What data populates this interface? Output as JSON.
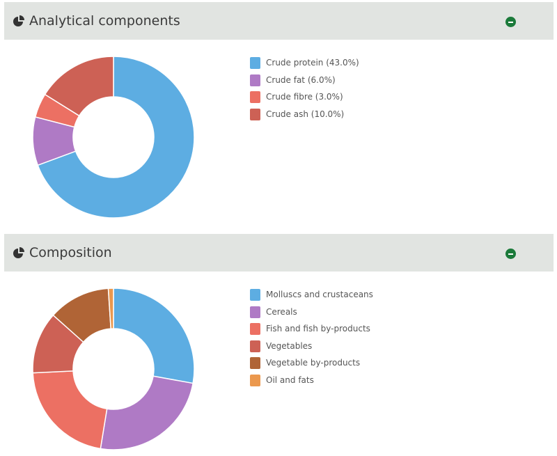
{
  "panels": [
    {
      "title": "Analytical components",
      "icon": "pie-chart-icon",
      "collapse_icon": "minus-circle-icon",
      "legend": [
        {
          "label": "Crude protein (43.0%)",
          "color": "#5dade2"
        },
        {
          "label": "Crude fat (6.0%)",
          "color": "#af7ac5"
        },
        {
          "label": "Crude fibre (3.0%)",
          "color": "#ec7063"
        },
        {
          "label": "Crude ash (10.0%)",
          "color": "#cd6155"
        }
      ]
    },
    {
      "title": "Composition",
      "icon": "pie-chart-icon",
      "collapse_icon": "minus-circle-icon",
      "legend": [
        {
          "label": "Molluscs and crustaceans",
          "color": "#5dade2"
        },
        {
          "label": "Cereals",
          "color": "#af7ac5"
        },
        {
          "label": "Fish and fish by-products",
          "color": "#ec7063"
        },
        {
          "label": "Vegetables",
          "color": "#cd6155"
        },
        {
          "label": "Vegetable by-products",
          "color": "#b06436"
        },
        {
          "label": "Oil and fats",
          "color": "#eb984e"
        }
      ]
    }
  ],
  "chart_data": [
    {
      "type": "pie",
      "categories": [
        "Crude protein",
        "Crude fat",
        "Crude fibre",
        "Crude ash"
      ],
      "values": [
        43.0,
        6.0,
        3.0,
        10.0
      ],
      "colors": [
        "#5dade2",
        "#af7ac5",
        "#ec7063",
        "#cd6155"
      ]
    },
    {
      "type": "pie",
      "categories": [
        "Molluscs and crustaceans",
        "Cereals",
        "Fish and fish by-products",
        "Vegetables",
        "Vegetable by-products",
        "Oil and fats"
      ],
      "values": [
        27,
        24,
        21,
        12,
        12,
        1
      ],
      "colors": [
        "#5dade2",
        "#af7ac5",
        "#ec7063",
        "#cd6155",
        "#b06436",
        "#eb984e"
      ]
    }
  ]
}
